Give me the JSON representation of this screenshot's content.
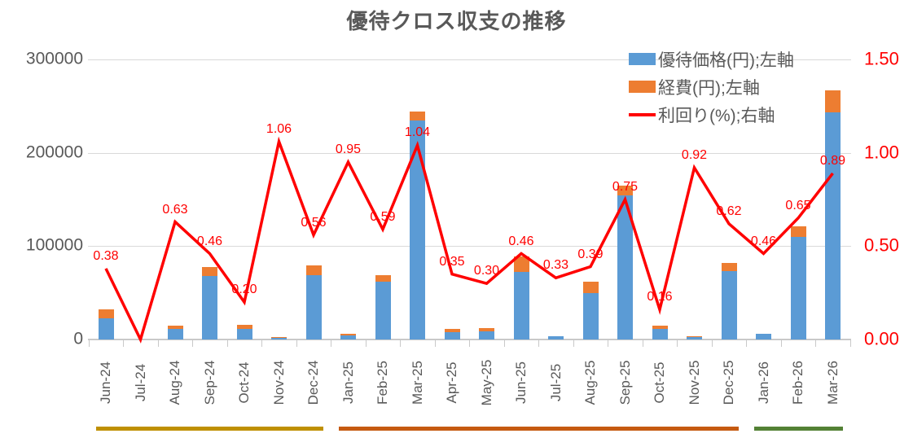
{
  "title": "優待クロス収支の推移",
  "colors": {
    "benefit_bar": "#5B9BD5",
    "expense_bar": "#ED7D31",
    "yield_line": "#FF0000",
    "text_gray": "#595959",
    "gridline": "#D9D9D9",
    "band_2024": "#BF9000",
    "band_2025": "#C55A11",
    "band_2026": "#538135"
  },
  "legend": {
    "position": "top-right",
    "items": [
      {
        "label": "優待価格(円);左軸",
        "swatch": "rect",
        "color": "#5B9BD5"
      },
      {
        "label": "経費(円);左軸",
        "swatch": "rect",
        "color": "#ED7D31"
      },
      {
        "label": "利回り(%);右軸",
        "swatch": "line",
        "color": "#FF0000"
      }
    ]
  },
  "chart_data": {
    "type": "combo: stacked bar (left axis) + line (right axis)",
    "title": "優待クロス収支の推移",
    "categories": [
      "Jun-24",
      "Jul-24",
      "Aug-24",
      "Sep-24",
      "Oct-24",
      "Nov-24",
      "Dec-24",
      "Jan-25",
      "Feb-25",
      "Mar-25",
      "Apr-25",
      "May-25",
      "Jun-25",
      "Jul-25",
      "Aug-25",
      "Sep-25",
      "Oct-25",
      "Nov-25",
      "Dec-25",
      "Jan-26",
      "Feb-26",
      "Mar-26"
    ],
    "series": [
      {
        "name": "優待価格(円);左軸",
        "type": "bar",
        "stacked": true,
        "axis": "left",
        "color": "#5B9BD5",
        "values": [
          23000,
          0,
          11000,
          68000,
          11000,
          1500,
          69000,
          4500,
          62000,
          235000,
          8000,
          9000,
          72000,
          3500,
          50000,
          154000,
          11000,
          3000,
          73000,
          6000,
          110000,
          243000
        ]
      },
      {
        "name": "経費(円);左軸",
        "type": "bar",
        "stacked": true,
        "axis": "left",
        "color": "#ED7D31",
        "values": [
          9000,
          0,
          3500,
          10000,
          4500,
          1200,
          10000,
          1500,
          7000,
          9000,
          3000,
          3000,
          17000,
          0,
          12000,
          11000,
          4000,
          800,
          9000,
          0,
          11000,
          24000
        ]
      },
      {
        "name": "利回り(%);右軸",
        "type": "line",
        "axis": "right",
        "color": "#FF0000",
        "values": [
          0.38,
          0.0,
          0.63,
          0.46,
          0.2,
          1.06,
          0.56,
          0.95,
          0.59,
          1.04,
          0.35,
          0.3,
          0.46,
          0.33,
          0.39,
          0.75,
          0.16,
          0.92,
          0.62,
          0.46,
          0.65,
          0.89
        ],
        "point_labels": [
          "0.38",
          null,
          "0.63",
          "0.46",
          "0.20",
          "1.06",
          "0.56",
          "0.95",
          "0.59",
          "1.04",
          "0.35",
          "0.30",
          "0.46",
          "0.33",
          "0.39",
          "0.75",
          "0.16",
          "0.92",
          "0.62",
          "0.46",
          "0.65",
          "0.89"
        ]
      }
    ],
    "left_axis": {
      "min": 0,
      "max": 300000,
      "ticks": [
        "0",
        "100000",
        "200000",
        "300000"
      ],
      "color": "#595959"
    },
    "right_axis": {
      "min": 0,
      "max": 1.5,
      "ticks": [
        "0.00",
        "0.50",
        "1.00",
        "1.50"
      ],
      "color": "#FF0000"
    },
    "gridlines": true,
    "legend_position": "top-right",
    "period_bands": [
      {
        "from": "Jun-24",
        "to": "Dec-24",
        "color": "#BF9000"
      },
      {
        "from": "Jan-25",
        "to": "Dec-25",
        "color": "#C55A11"
      },
      {
        "from": "Jan-26",
        "to": "Mar-26",
        "color": "#538135"
      }
    ]
  }
}
